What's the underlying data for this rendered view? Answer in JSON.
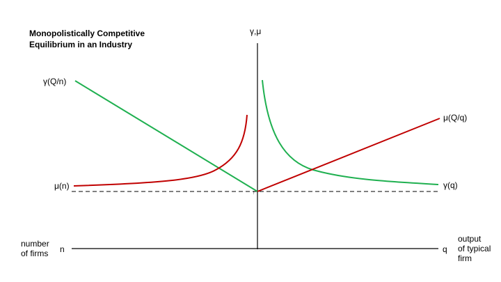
{
  "diagram": {
    "title_line1": "Monopolistically Competitive",
    "title_line2": "Equilibrium in an Industry",
    "vertical_axis_label": "γ,μ",
    "left_upper_label": "γ(Q/n)",
    "left_lower_label": "μ(n)",
    "right_upper_label": "μ(Q/q)",
    "right_lower_label": "γ(q)",
    "origin_marker": "↑",
    "left_axis_caption_line1": "number",
    "left_axis_caption_line2": "of firms",
    "left_axis_letter": "n",
    "right_axis_letter": "q",
    "right_axis_caption_line1": "output",
    "right_axis_caption_line2": "of typical",
    "right_axis_caption_line3": "firm",
    "colors": {
      "green_curve": "#1fb050",
      "red_curve": "#c00000",
      "axis": "#000000"
    }
  }
}
